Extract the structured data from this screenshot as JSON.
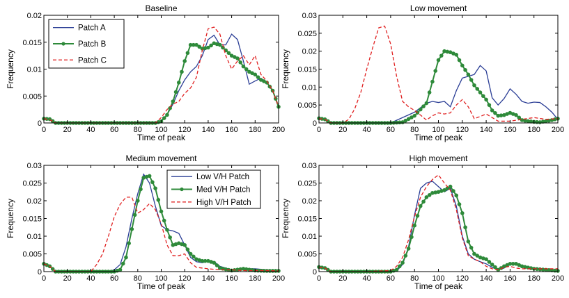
{
  "colors": {
    "series_1": "#2a3d95",
    "series_2": "#2e8a3a",
    "series_3": "#e02020",
    "axis": "#000000"
  },
  "chart_data": [
    {
      "type": "line",
      "title": "Baseline",
      "xlabel": "Time of peak",
      "ylabel": "Frequency",
      "xlim": [
        0,
        200
      ],
      "ylim": [
        0,
        0.02
      ],
      "xticks": [
        0,
        20,
        40,
        60,
        80,
        100,
        120,
        140,
        160,
        180,
        200
      ],
      "yticks": [
        0,
        0.005,
        0.01,
        0.015,
        0.02
      ],
      "ytick_labels": [
        "0",
        "0.005",
        "0.01",
        "0.015",
        "0.02"
      ],
      "legend_position": "top-left",
      "series": [
        {
          "name": "Patch A",
          "style": "solid",
          "x": [
            0,
            5,
            10,
            20,
            40,
            60,
            80,
            95,
            100,
            105,
            110,
            115,
            120,
            125,
            130,
            135,
            140,
            145,
            150,
            155,
            160,
            165,
            170,
            175,
            180,
            185,
            190,
            195,
            200
          ],
          "y": [
            0.0007,
            0.0006,
            0,
            0,
            0,
            0,
            0,
            0,
            0.0005,
            0.0015,
            0.0035,
            0.006,
            0.008,
            0.0095,
            0.0105,
            0.0125,
            0.0155,
            0.0163,
            0.0145,
            0.0145,
            0.0165,
            0.0155,
            0.0115,
            0.0072,
            0.0078,
            0.0083,
            0.0075,
            0.006,
            0.003
          ]
        },
        {
          "name": "Patch B",
          "style": "marker",
          "x": [
            0,
            5,
            10,
            20,
            40,
            60,
            80,
            95,
            100,
            105,
            110,
            115,
            120,
            125,
            130,
            135,
            140,
            145,
            150,
            155,
            160,
            165,
            170,
            175,
            180,
            185,
            190,
            195,
            200
          ],
          "y": [
            0.0008,
            0.0007,
            0,
            0,
            0,
            0,
            0,
            0,
            0.0003,
            0.0015,
            0.004,
            0.0075,
            0.0115,
            0.0145,
            0.0145,
            0.0138,
            0.014,
            0.0148,
            0.0145,
            0.0135,
            0.0125,
            0.012,
            0.0105,
            0.0095,
            0.009,
            0.008,
            0.0075,
            0.006,
            0.003
          ]
        },
        {
          "name": "Patch C",
          "style": "dashed",
          "x": [
            0,
            5,
            10,
            20,
            40,
            60,
            80,
            95,
            100,
            105,
            110,
            115,
            120,
            125,
            130,
            135,
            140,
            145,
            150,
            155,
            160,
            165,
            170,
            175,
            180,
            185,
            190,
            195,
            200
          ],
          "y": [
            0.0008,
            0.0006,
            0,
            0,
            0,
            0,
            0,
            0,
            0.001,
            0.0025,
            0.0035,
            0.004,
            0.0055,
            0.0065,
            0.0085,
            0.0135,
            0.0175,
            0.0178,
            0.0165,
            0.0125,
            0.01,
            0.0115,
            0.0125,
            0.0108,
            0.0125,
            0.009,
            0.0078,
            0.006,
            0.003
          ]
        }
      ]
    },
    {
      "type": "line",
      "title": "Low movement",
      "xlabel": "Time of peak",
      "ylabel": "Frequency",
      "xlim": [
        0,
        200
      ],
      "ylim": [
        0,
        0.03
      ],
      "xticks": [
        0,
        20,
        40,
        60,
        80,
        100,
        120,
        140,
        160,
        180,
        200
      ],
      "yticks": [
        0,
        0.005,
        0.01,
        0.015,
        0.02,
        0.025,
        0.03
      ],
      "ytick_labels": [
        "0",
        "0.005",
        "0.01",
        "0.015",
        "0.02",
        "0.025",
        "0.03"
      ],
      "series": [
        {
          "name": "",
          "style": "solid",
          "x": [
            0,
            5,
            10,
            20,
            40,
            60,
            70,
            80,
            90,
            95,
            100,
            105,
            110,
            115,
            120,
            125,
            130,
            135,
            140,
            145,
            150,
            155,
            160,
            165,
            170,
            175,
            180,
            185,
            190,
            195,
            200
          ],
          "y": [
            0.0012,
            0.001,
            0,
            0,
            0,
            0,
            0.0015,
            0.003,
            0.0055,
            0.006,
            0.0057,
            0.006,
            0.0045,
            0.009,
            0.0125,
            0.013,
            0.0135,
            0.016,
            0.0145,
            0.007,
            0.005,
            0.0068,
            0.0095,
            0.008,
            0.006,
            0.0055,
            0.0058,
            0.0057,
            0.0045,
            0.003,
            0.001
          ]
        },
        {
          "name": "",
          "style": "marker",
          "x": [
            0,
            5,
            10,
            20,
            40,
            60,
            70,
            80,
            90,
            95,
            100,
            105,
            110,
            115,
            120,
            125,
            130,
            135,
            140,
            145,
            150,
            155,
            160,
            165,
            170,
            175,
            180,
            185,
            190,
            195,
            200
          ],
          "y": [
            0.0013,
            0.001,
            0,
            0,
            0,
            0,
            0.0002,
            0.002,
            0.0055,
            0.0115,
            0.0175,
            0.02,
            0.0197,
            0.019,
            0.016,
            0.0135,
            0.0105,
            0.0085,
            0.0065,
            0.0035,
            0.002,
            0.0022,
            0.0028,
            0.0022,
            0.0008,
            0.0005,
            0.0003,
            0.0002,
            0.0005,
            0.0008,
            0.0012
          ]
        },
        {
          "name": "",
          "style": "dashed",
          "x": [
            0,
            5,
            10,
            20,
            25,
            30,
            35,
            40,
            45,
            50,
            55,
            60,
            65,
            70,
            75,
            80,
            85,
            90,
            95,
            100,
            105,
            110,
            115,
            120,
            125,
            130,
            135,
            140,
            150,
            160,
            170,
            180,
            190,
            200
          ],
          "y": [
            0.0012,
            0.001,
            0,
            0,
            0.001,
            0.004,
            0.0085,
            0.015,
            0.021,
            0.0265,
            0.027,
            0.022,
            0.013,
            0.006,
            0.0045,
            0.0035,
            0.0022,
            0.0008,
            0.002,
            0.0028,
            0.0025,
            0.0028,
            0.005,
            0.0065,
            0.0045,
            0.0012,
            0.0018,
            0.0025,
            0.0005,
            0.0005,
            0.001,
            0.0015,
            0.001,
            0.0012
          ]
        }
      ]
    },
    {
      "type": "line",
      "title": "Medium movement",
      "xlabel": "Time of peak",
      "ylabel": "Frequency",
      "xlim": [
        0,
        200
      ],
      "ylim": [
        0,
        0.03
      ],
      "xticks": [
        0,
        20,
        40,
        60,
        80,
        100,
        120,
        140,
        160,
        180,
        200
      ],
      "yticks": [
        0,
        0.005,
        0.01,
        0.015,
        0.02,
        0.025,
        0.03
      ],
      "ytick_labels": [
        "0",
        "0.005",
        "0.01",
        "0.015",
        "0.02",
        "0.025",
        "0.03"
      ],
      "legend_position": "top-right",
      "series": [
        {
          "name": "Low V/H Patch",
          "style": "solid",
          "x": [
            0,
            5,
            10,
            20,
            40,
            55,
            60,
            65,
            70,
            75,
            80,
            85,
            90,
            95,
            100,
            105,
            110,
            115,
            120,
            125,
            130,
            135,
            140,
            145,
            150,
            160,
            170,
            180,
            190,
            200
          ],
          "y": [
            0.0022,
            0.0015,
            0,
            0,
            0,
            0,
            0.0005,
            0.002,
            0.007,
            0.015,
            0.022,
            0.0275,
            0.025,
            0.0185,
            0.013,
            0.0118,
            0.0115,
            0.0108,
            0.0075,
            0.004,
            0.0028,
            0.0025,
            0.003,
            0.0028,
            0.0015,
            0.0005,
            0.0008,
            0.0008,
            0.0005,
            0.0003
          ]
        },
        {
          "name": "Med V/H Patch",
          "style": "marker",
          "x": [
            0,
            5,
            10,
            20,
            40,
            55,
            60,
            65,
            70,
            75,
            80,
            85,
            90,
            95,
            100,
            105,
            110,
            115,
            120,
            125,
            130,
            135,
            140,
            145,
            150,
            160,
            170,
            180,
            190,
            200
          ],
          "y": [
            0.0022,
            0.0015,
            0,
            0,
            0,
            0,
            0,
            0.0005,
            0.004,
            0.012,
            0.02,
            0.0265,
            0.027,
            0.0235,
            0.017,
            0.0118,
            0.0075,
            0.008,
            0.0075,
            0.005,
            0.0035,
            0.003,
            0.003,
            0.0025,
            0.001,
            0.0003,
            0.0008,
            0.0003,
            0.0002,
            0.0002
          ]
        },
        {
          "name": "High V/H Patch",
          "style": "dashed",
          "x": [
            0,
            5,
            10,
            20,
            40,
            45,
            50,
            55,
            60,
            65,
            70,
            75,
            80,
            85,
            90,
            95,
            100,
            105,
            110,
            115,
            120,
            125,
            130,
            140,
            150,
            160,
            170,
            180,
            190,
            200
          ],
          "y": [
            0.0022,
            0.0015,
            0,
            0,
            0,
            0.002,
            0.005,
            0.01,
            0.0155,
            0.019,
            0.021,
            0.021,
            0.0165,
            0.0175,
            0.0192,
            0.0175,
            0.0135,
            0.0075,
            0.0045,
            0.0045,
            0.005,
            0.0025,
            0.0012,
            0.0008,
            0.0005,
            0.0005,
            0.0003,
            0.0003,
            0.0003,
            0.0002
          ]
        }
      ]
    },
    {
      "type": "line",
      "title": "High movement",
      "xlabel": "Time of peak",
      "ylabel": "Frequency",
      "xlim": [
        0,
        200
      ],
      "ylim": [
        0,
        0.03
      ],
      "xticks": [
        0,
        20,
        40,
        60,
        80,
        100,
        120,
        140,
        160,
        180,
        200
      ],
      "yticks": [
        0,
        0.005,
        0.01,
        0.015,
        0.02,
        0.025,
        0.03
      ],
      "ytick_labels": [
        "0",
        "0.005",
        "0.01",
        "0.015",
        "0.02",
        "0.025",
        "0.03"
      ],
      "series": [
        {
          "name": "",
          "style": "solid",
          "x": [
            0,
            5,
            10,
            20,
            40,
            60,
            65,
            70,
            75,
            80,
            85,
            90,
            95,
            100,
            105,
            110,
            115,
            120,
            125,
            130,
            135,
            140,
            145,
            150,
            155,
            160,
            165,
            170,
            180,
            190,
            200
          ],
          "y": [
            0.0012,
            0.001,
            0,
            0,
            0,
            0,
            0.0002,
            0.002,
            0.007,
            0.016,
            0.0235,
            0.025,
            0.0255,
            0.024,
            0.0225,
            0.0235,
            0.0185,
            0.01,
            0.005,
            0.0035,
            0.0028,
            0.0022,
            0.0012,
            0.0005,
            0.001,
            0.002,
            0.0022,
            0.0015,
            0.001,
            0.0005,
            0.0005
          ]
        },
        {
          "name": "",
          "style": "marker",
          "x": [
            0,
            5,
            10,
            20,
            40,
            60,
            65,
            70,
            75,
            80,
            85,
            90,
            95,
            100,
            105,
            110,
            115,
            120,
            125,
            130,
            135,
            140,
            145,
            150,
            155,
            160,
            165,
            170,
            180,
            190,
            200
          ],
          "y": [
            0.0013,
            0.001,
            0,
            0,
            0,
            0,
            0.0005,
            0.0025,
            0.0065,
            0.013,
            0.0185,
            0.021,
            0.0222,
            0.0225,
            0.023,
            0.024,
            0.0215,
            0.0165,
            0.0085,
            0.005,
            0.004,
            0.0035,
            0.002,
            0.0005,
            0.0015,
            0.0022,
            0.0022,
            0.0015,
            0.0008,
            0.0005,
            0.0002
          ]
        },
        {
          "name": "",
          "style": "dashed",
          "x": [
            0,
            5,
            10,
            20,
            40,
            60,
            65,
            70,
            75,
            80,
            85,
            90,
            95,
            100,
            105,
            110,
            115,
            120,
            125,
            130,
            135,
            140,
            145,
            150,
            155,
            160,
            165,
            170,
            180,
            190,
            200
          ],
          "y": [
            0.0012,
            0.001,
            0,
            0,
            0,
            0.0003,
            0.0015,
            0.004,
            0.009,
            0.0155,
            0.021,
            0.024,
            0.026,
            0.0273,
            0.025,
            0.023,
            0.0175,
            0.0095,
            0.0045,
            0.0035,
            0.0028,
            0.0015,
            0.0008,
            0.0005,
            0.0012,
            0.0015,
            0.001,
            0.0008,
            0.0008,
            0.0008,
            0.0008
          ]
        }
      ]
    }
  ]
}
